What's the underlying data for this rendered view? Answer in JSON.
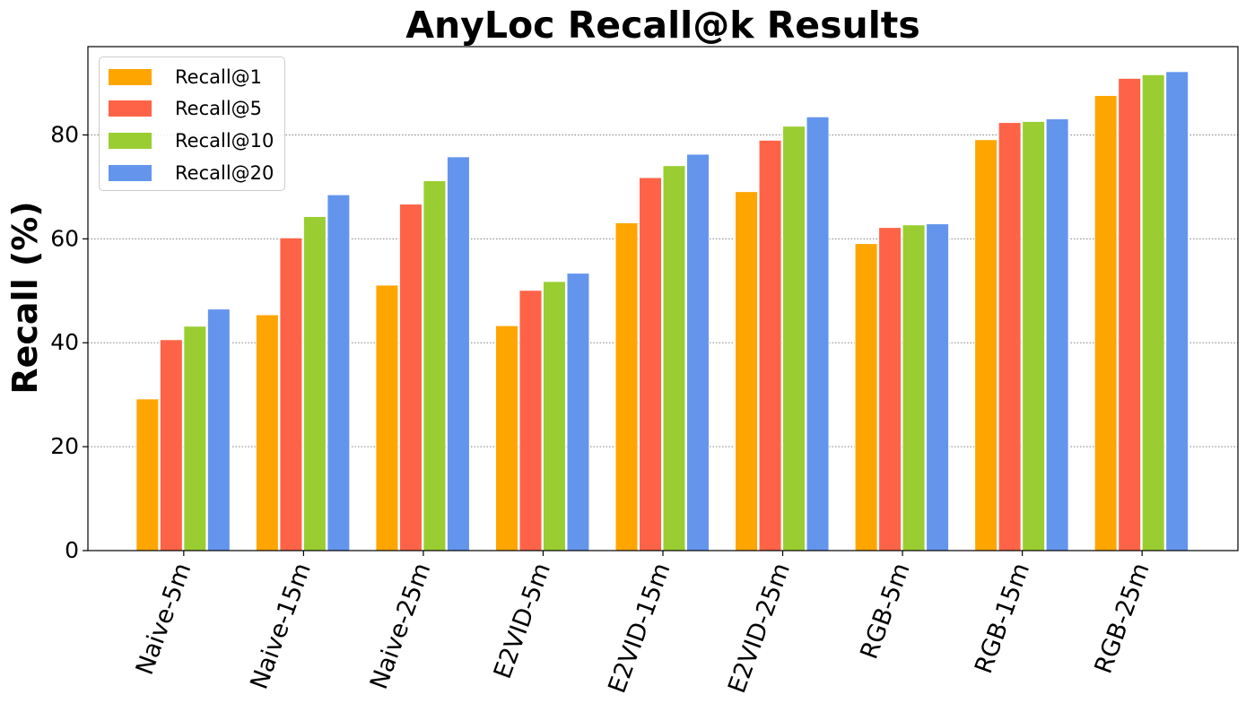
{
  "chart_data": {
    "type": "bar",
    "title": "AnyLoc Recall@k Results",
    "xlabel": "",
    "ylabel": "Recall (%)",
    "ylim": [
      0,
      97
    ],
    "yticks": [
      0,
      20,
      40,
      60,
      80
    ],
    "grid": "horizontal dotted",
    "legend_position": "top-left",
    "categories": [
      "Naive-5m",
      "Naive-15m",
      "Naive-25m",
      "E2VID-5m",
      "E2VID-15m",
      "E2VID-25m",
      "RGB-5m",
      "RGB-15m",
      "RGB-25m"
    ],
    "series": [
      {
        "name": "Recall@1",
        "color": "#ffa500",
        "values": [
          29.2,
          45.4,
          51.1,
          43.3,
          63.1,
          69.1,
          59.1,
          79.1,
          87.6
        ]
      },
      {
        "name": "Recall@5",
        "color": "#ff6347",
        "values": [
          40.6,
          60.2,
          66.7,
          50.1,
          71.8,
          79.0,
          62.2,
          82.4,
          90.9
        ]
      },
      {
        "name": "Recall@10",
        "color": "#9acd32",
        "values": [
          43.2,
          64.3,
          71.2,
          51.8,
          74.1,
          81.7,
          62.7,
          82.6,
          91.6
        ]
      },
      {
        "name": "Recall@20",
        "color": "#6495ed",
        "values": [
          46.5,
          68.5,
          75.8,
          53.4,
          76.3,
          83.5,
          62.9,
          83.1,
          92.2
        ]
      }
    ]
  }
}
